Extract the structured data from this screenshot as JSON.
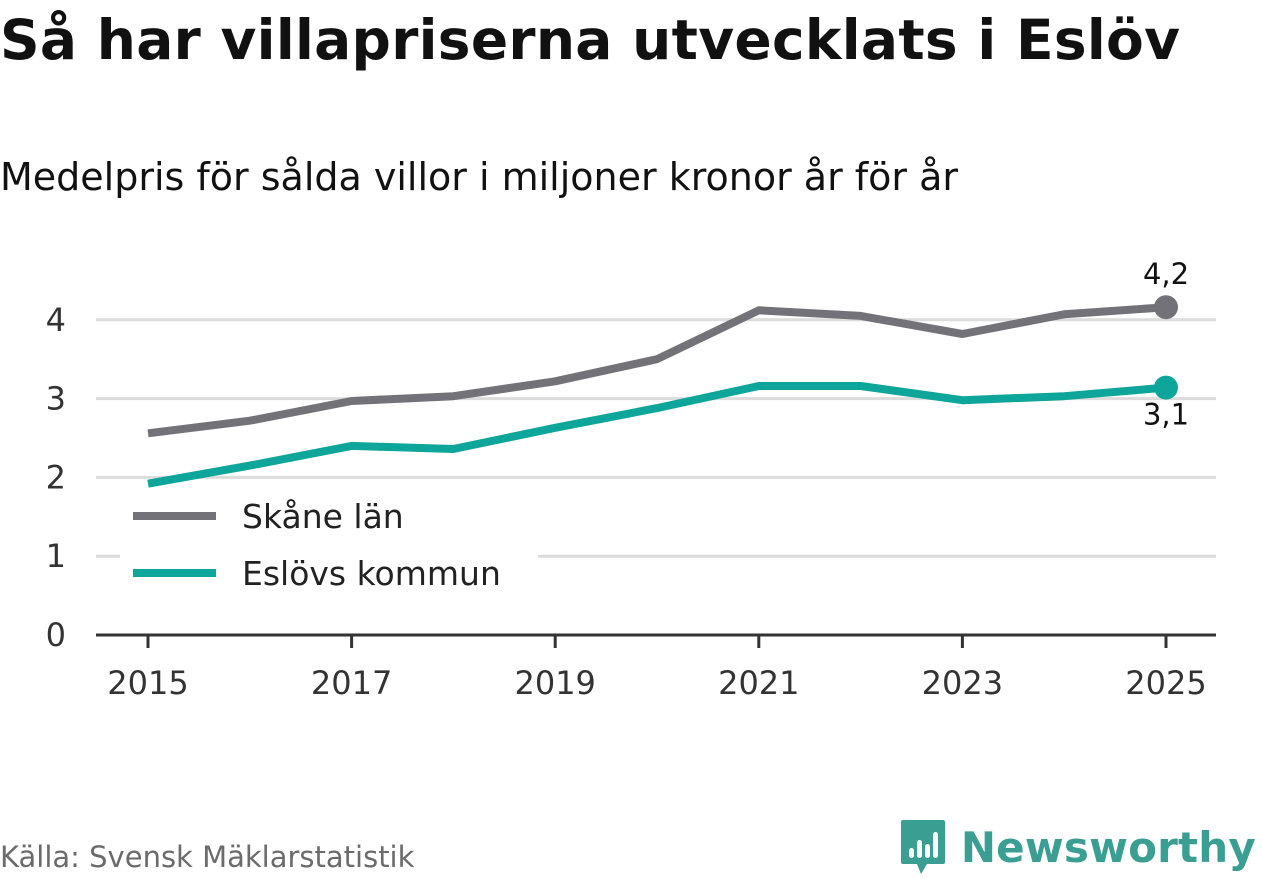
{
  "title": "Så har villapriserna utvecklats i Eslöv",
  "subtitle": "Medelpris för sålda villor i miljoner kronor år för år",
  "source": "Källa: Svensk Mäklarstatistik",
  "brand": "Newsworthy",
  "colors": {
    "skane": "#737278",
    "eslov": "#0ea59a",
    "grid": "#dcdcdc",
    "axis": "#333333",
    "brand": "#3a9e93"
  },
  "chart_data": {
    "type": "line",
    "title": "Så har villapriserna utvecklats i Eslöv",
    "subtitle": "Medelpris för sålda villor i miljoner kronor år för år",
    "xlabel": "",
    "ylabel": "",
    "x": [
      2015,
      2016,
      2017,
      2018,
      2019,
      2020,
      2021,
      2022,
      2023,
      2024,
      2025
    ],
    "x_ticks": [
      "2015",
      "2017",
      "2019",
      "2021",
      "2023",
      "2025"
    ],
    "y_ticks": [
      "0",
      "1",
      "2",
      "3",
      "4"
    ],
    "ylim": [
      0,
      4.3
    ],
    "grid": true,
    "legend_position": "lower-left",
    "series": [
      {
        "name": "Skåne län",
        "color": "#737278",
        "values": [
          2.56,
          2.72,
          2.97,
          3.03,
          3.22,
          3.5,
          4.12,
          4.05,
          3.82,
          4.07,
          4.16
        ],
        "end_label": "4,2"
      },
      {
        "name": "Eslövs kommun",
        "color": "#0ea59a",
        "values": [
          1.92,
          2.15,
          2.4,
          2.36,
          2.63,
          2.88,
          3.16,
          3.16,
          2.98,
          3.03,
          3.14
        ],
        "end_label": "3,1"
      }
    ]
  }
}
